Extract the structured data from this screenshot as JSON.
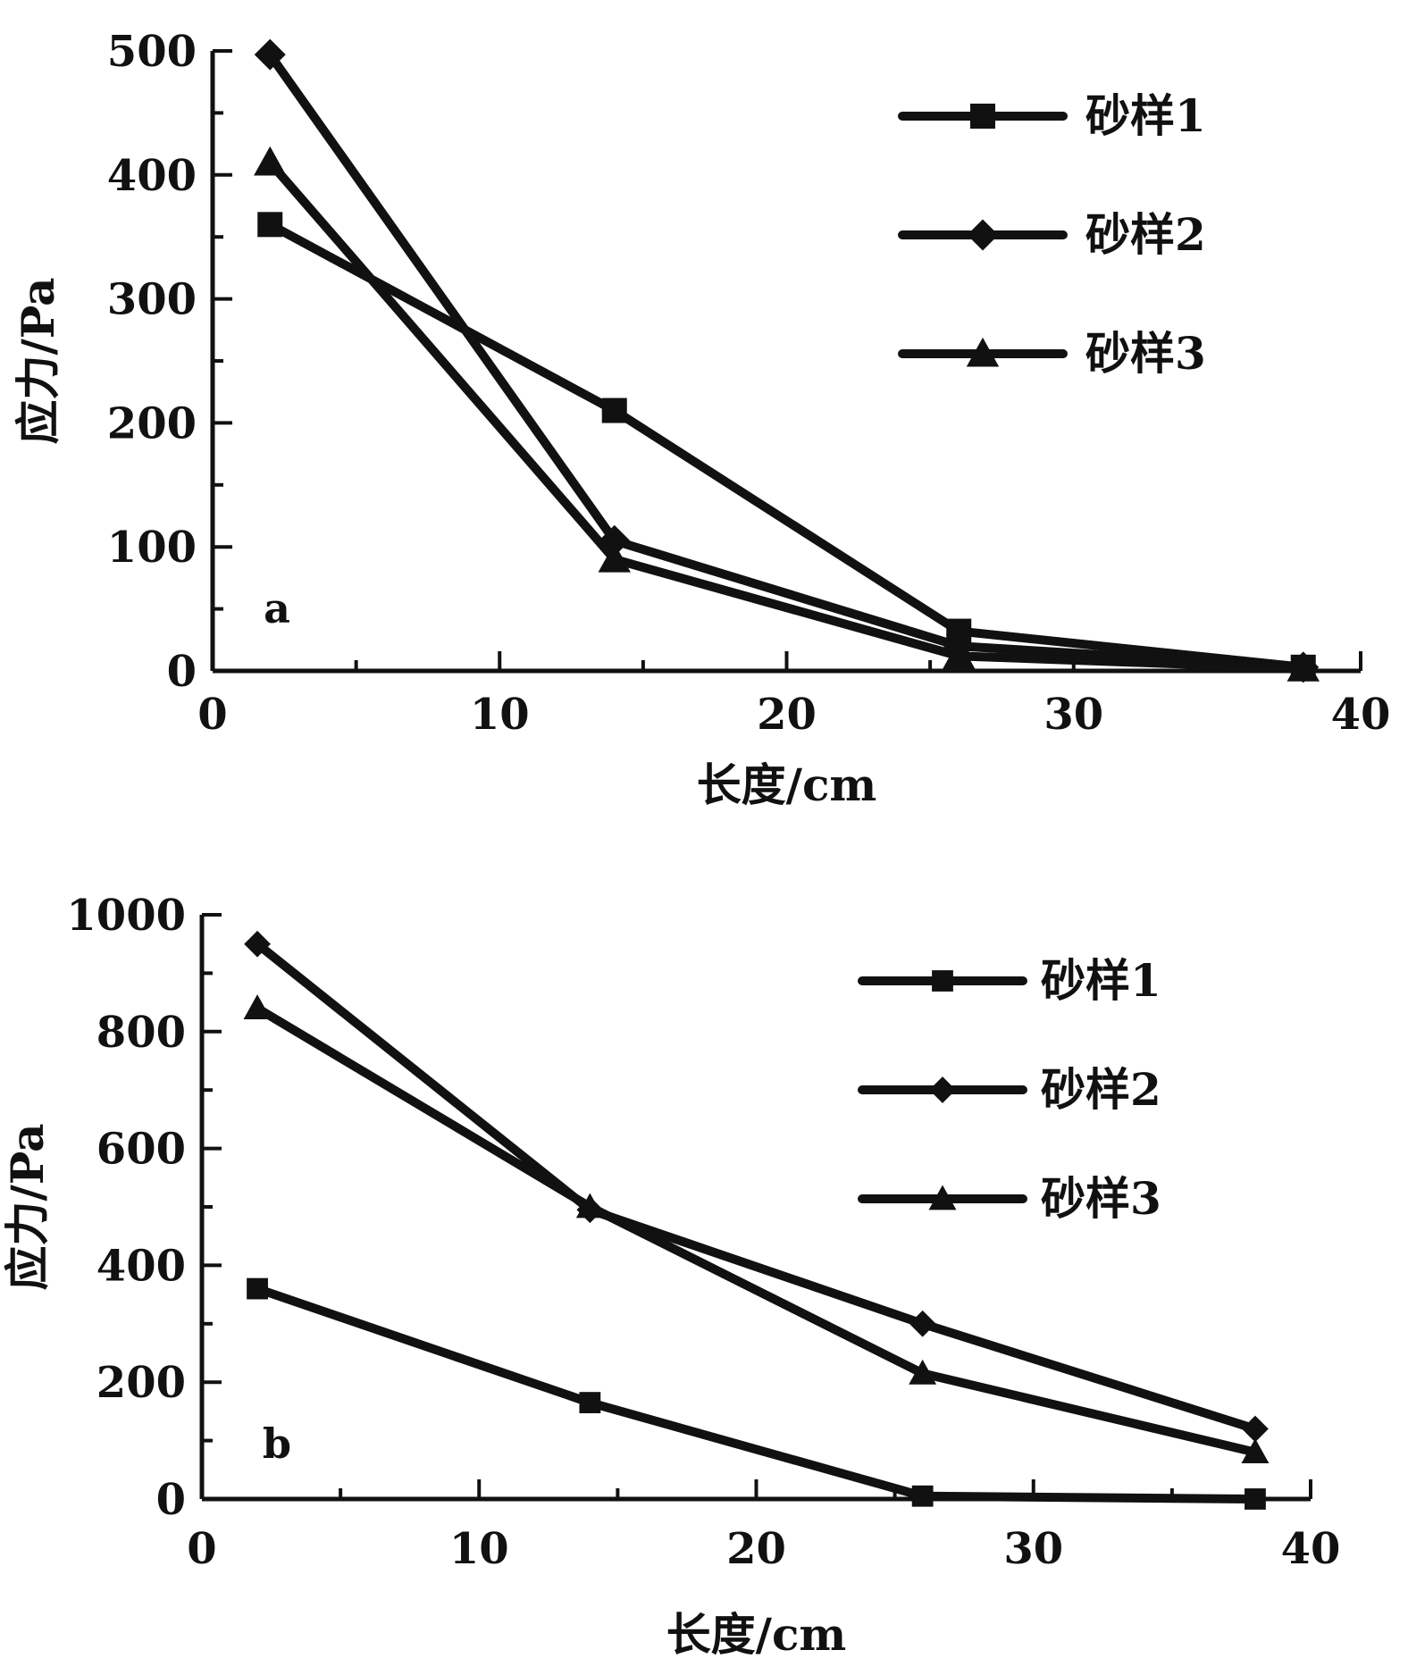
{
  "chart_data": [
    {
      "type": "line",
      "panel_label": "a",
      "xlabel": "长度/cm",
      "ylabel": "应力/Pa",
      "xlim": [
        0,
        40
      ],
      "ylim": [
        0,
        500
      ],
      "x_ticks": [
        "0",
        "10",
        "20",
        "30",
        "40"
      ],
      "y_ticks": [
        "0",
        "100",
        "200",
        "300",
        "400",
        "500"
      ],
      "legend_position": "top-right",
      "x": [
        2,
        14,
        26,
        38
      ],
      "series": [
        {
          "name": "砂样1",
          "marker": "square",
          "values": [
            360,
            210,
            32,
            3
          ]
        },
        {
          "name": "砂样2",
          "marker": "diamond",
          "values": [
            497,
            105,
            20,
            3
          ]
        },
        {
          "name": "砂样3",
          "marker": "triangle",
          "values": [
            410,
            90,
            12,
            2
          ]
        }
      ]
    },
    {
      "type": "line",
      "panel_label": "b",
      "xlabel": "长度/cm",
      "ylabel": "应力/Pa",
      "xlim": [
        0,
        40
      ],
      "ylim": [
        0,
        1000
      ],
      "x_ticks": [
        "0",
        "10",
        "20",
        "30",
        "40"
      ],
      "y_ticks": [
        "0",
        "200",
        "400",
        "600",
        "800",
        "1000"
      ],
      "legend_position": "top-right",
      "x": [
        2,
        14,
        26,
        38
      ],
      "series": [
        {
          "name": "砂样1",
          "marker": "square",
          "values": [
            360,
            165,
            5,
            0
          ]
        },
        {
          "name": "砂样2",
          "marker": "diamond",
          "values": [
            950,
            495,
            300,
            120
          ]
        },
        {
          "name": "砂样3",
          "marker": "triangle",
          "values": [
            840,
            500,
            215,
            80
          ]
        }
      ]
    }
  ]
}
